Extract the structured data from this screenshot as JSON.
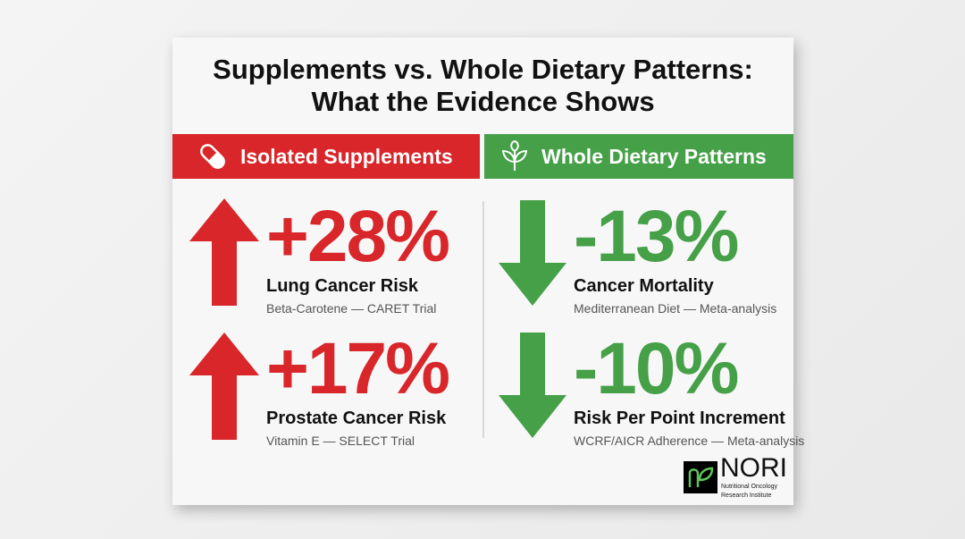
{
  "title_line1": "Supplements vs. Whole Dietary Patterns:",
  "title_line2": "What the Evidence Shows",
  "colors": {
    "red": "#d8262a",
    "green": "#45a048"
  },
  "left": {
    "header": "Isolated Supplements",
    "icon": "pill-icon",
    "stats": [
      {
        "value": "+28%",
        "label": "Lung Cancer Risk",
        "source": "Beta-Carotene — CARET Trial",
        "direction": "up"
      },
      {
        "value": "+17%",
        "label": "Prostate Cancer Risk",
        "source": "Vitamin E — SELECT Trial",
        "direction": "up"
      }
    ]
  },
  "right": {
    "header": "Whole Dietary Patterns",
    "icon": "sprout-icon",
    "stats": [
      {
        "value": "-13%",
        "label": "Cancer Mortality",
        "source": "Mediterranean Diet — Meta-analysis",
        "direction": "down"
      },
      {
        "value": "-10%",
        "label": "Risk Per Point Increment",
        "source": "WCRF/AICR Adherence — Meta-analysis",
        "direction": "down"
      }
    ]
  },
  "logo": {
    "name": "NORI",
    "sub1": "Nutritional Oncology",
    "sub2": "Research Institute"
  }
}
